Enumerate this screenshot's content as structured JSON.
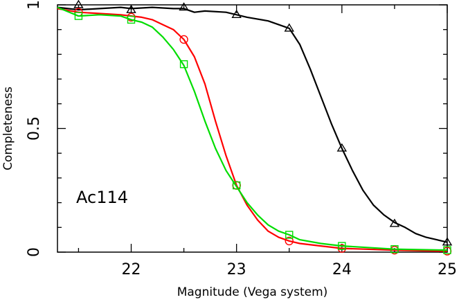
{
  "chart_data": {
    "type": "line",
    "xlabel": "Magnitude (Vega system)",
    "ylabel": "Completeness",
    "annotation": "Ac114",
    "xlim": [
      21.3,
      25.0
    ],
    "ylim": [
      0,
      1.0
    ],
    "x_ticks": [
      "22",
      "23",
      "24",
      "25"
    ],
    "y_ticks": [
      "0",
      "0.5",
      "1"
    ],
    "grid": false,
    "series": [
      {
        "color": "#000000",
        "marker": "triangle",
        "curve_x": [
          21.3,
          21.5,
          21.7,
          21.9,
          22.0,
          22.2,
          22.4,
          22.5,
          22.6,
          22.7,
          22.9,
          23.0,
          23.1,
          23.3,
          23.5,
          23.6,
          23.7,
          23.8,
          23.9,
          24.0,
          24.1,
          24.2,
          24.3,
          24.4,
          24.5,
          24.6,
          24.7,
          24.8,
          24.9,
          25.0
        ],
        "curve_y": [
          0.99,
          0.98,
          0.985,
          0.99,
          0.985,
          0.99,
          0.985,
          0.985,
          0.97,
          0.975,
          0.97,
          0.96,
          0.95,
          0.935,
          0.905,
          0.84,
          0.74,
          0.63,
          0.52,
          0.42,
          0.33,
          0.25,
          0.19,
          0.15,
          0.12,
          0.1,
          0.075,
          0.06,
          0.05,
          0.04
        ],
        "marker_x": [
          21.5,
          22.0,
          22.5,
          23.0,
          23.5,
          24.0,
          24.5,
          25.0
        ],
        "marker_y": [
          1.0,
          0.98,
          0.99,
          0.96,
          0.905,
          0.42,
          0.115,
          0.04
        ]
      },
      {
        "color": "#ff0000",
        "marker": "circle",
        "curve_x": [
          21.3,
          21.5,
          21.7,
          21.9,
          22.0,
          22.1,
          22.2,
          22.3,
          22.4,
          22.5,
          22.6,
          22.7,
          22.8,
          22.9,
          23.0,
          23.1,
          23.2,
          23.3,
          23.4,
          23.5,
          23.6,
          23.8,
          24.0,
          24.5,
          25.0
        ],
        "curve_y": [
          0.985,
          0.97,
          0.965,
          0.96,
          0.955,
          0.95,
          0.94,
          0.92,
          0.9,
          0.86,
          0.79,
          0.68,
          0.53,
          0.39,
          0.27,
          0.19,
          0.13,
          0.085,
          0.06,
          0.045,
          0.035,
          0.025,
          0.015,
          0.008,
          0.004
        ],
        "marker_x": [
          21.5,
          22.0,
          22.5,
          23.0,
          23.5,
          24.0,
          24.5,
          25.0
        ],
        "marker_y": [
          0.97,
          0.95,
          0.86,
          0.27,
          0.045,
          0.015,
          0.008,
          0.004
        ]
      },
      {
        "color": "#00dd00",
        "marker": "square",
        "curve_x": [
          21.3,
          21.5,
          21.7,
          21.9,
          22.0,
          22.1,
          22.2,
          22.3,
          22.4,
          22.5,
          22.6,
          22.7,
          22.8,
          22.9,
          23.0,
          23.1,
          23.2,
          23.3,
          23.4,
          23.5,
          23.6,
          23.8,
          24.0,
          24.5,
          25.0
        ],
        "curve_y": [
          0.99,
          0.955,
          0.96,
          0.955,
          0.94,
          0.93,
          0.91,
          0.87,
          0.82,
          0.755,
          0.65,
          0.53,
          0.42,
          0.33,
          0.265,
          0.2,
          0.15,
          0.11,
          0.085,
          0.07,
          0.05,
          0.035,
          0.025,
          0.012,
          0.008
        ],
        "marker_x": [
          21.5,
          22.0,
          22.5,
          23.0,
          23.5,
          24.0,
          24.5,
          25.0
        ],
        "marker_y": [
          0.955,
          0.94,
          0.76,
          0.27,
          0.07,
          0.025,
          0.012,
          0.008
        ]
      }
    ]
  }
}
